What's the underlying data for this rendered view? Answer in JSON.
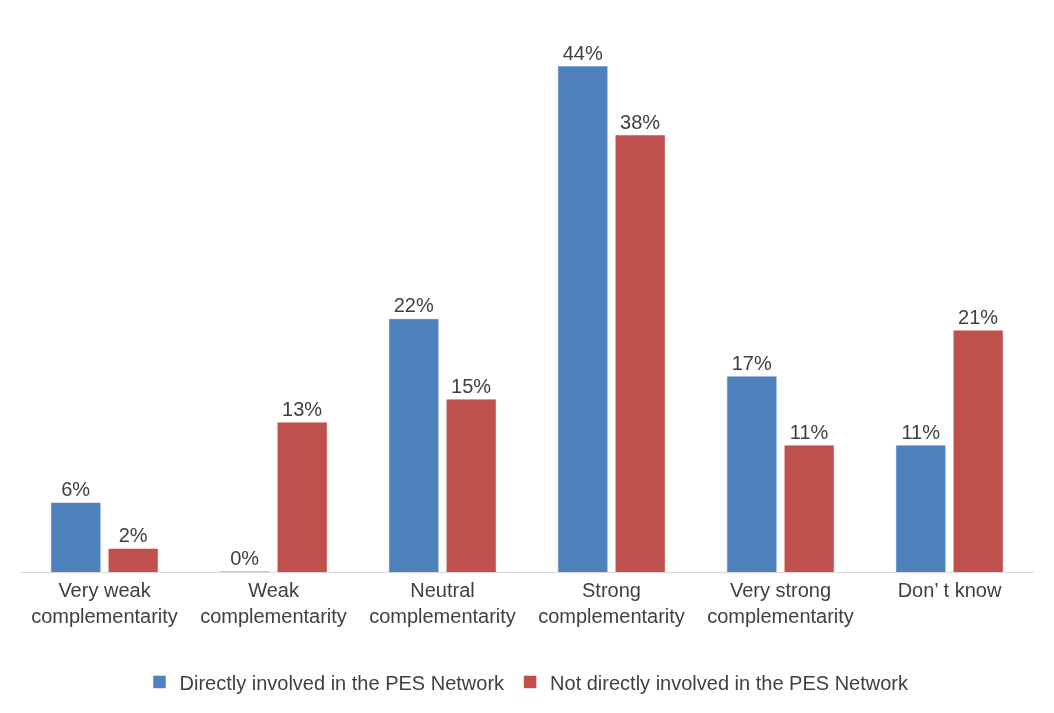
{
  "chart_data": {
    "type": "bar",
    "categories": [
      "Very weak\ncomplementarity",
      "Weak\ncomplementarity",
      "Neutral\ncomplementarity",
      "Strong\ncomplementarity",
      "Very strong\ncomplementarity",
      "Don’ t know"
    ],
    "series": [
      {
        "name": "Directly involved in the PES Network",
        "color": "#4f81bd",
        "values": [
          6,
          0,
          22,
          44,
          17,
          11
        ],
        "value_labels": [
          "6%",
          "0%",
          "22%",
          "44%",
          "17%",
          "11%"
        ]
      },
      {
        "name": "Not directly involved in the PES Network",
        "color": "#c0504d",
        "values": [
          2,
          13,
          15,
          38,
          11,
          21
        ],
        "value_labels": [
          "2%",
          "13%",
          "15%",
          "38%",
          "11%",
          "21%"
        ]
      }
    ],
    "legend": "bottom"
  }
}
